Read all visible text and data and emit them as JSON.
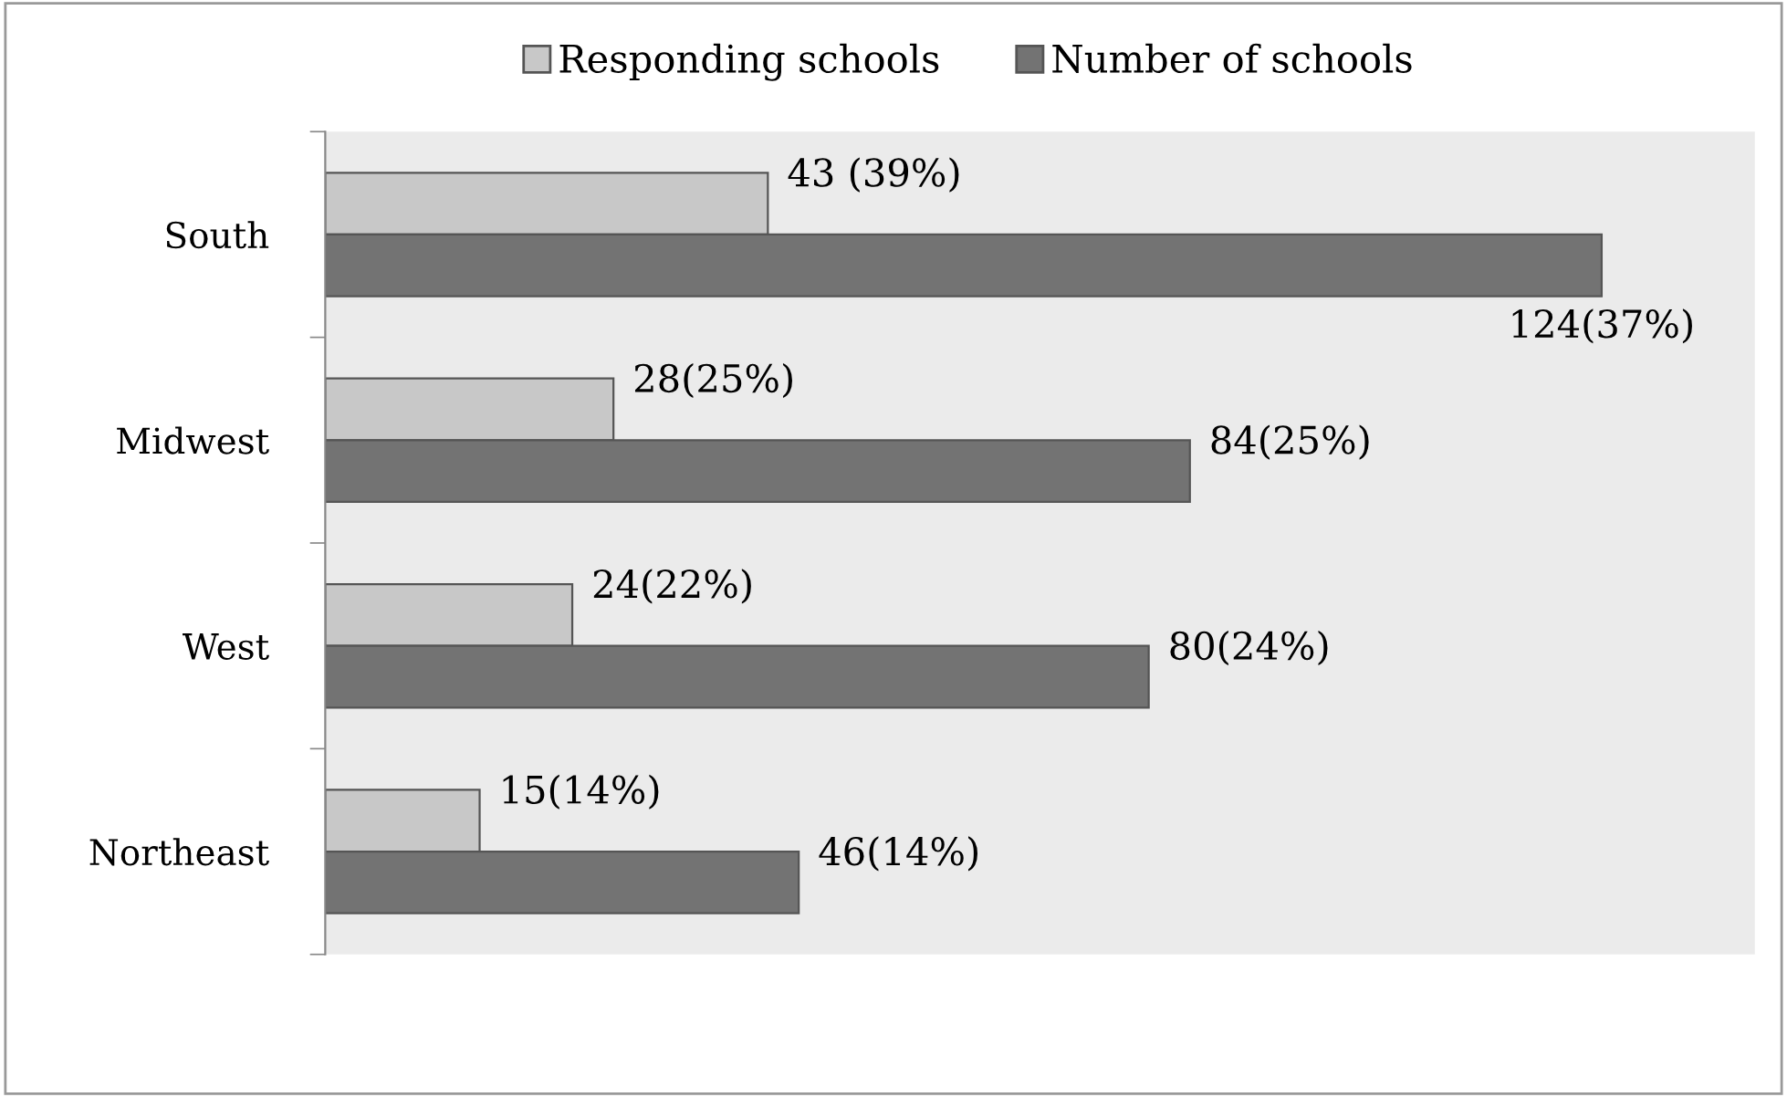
{
  "chart_data": {
    "type": "bar",
    "orientation": "horizontal",
    "categories": [
      "South",
      "Midwest",
      "West",
      "Northeast"
    ],
    "series": [
      {
        "name": "Responding schools",
        "color": "#c8c8c8",
        "values": [
          43,
          28,
          24,
          15
        ],
        "value_labels": [
          "43 (39%)",
          "28(25%)",
          "24(22%)",
          "15(14%)"
        ]
      },
      {
        "name": "Number of schools",
        "color": "#737373",
        "values": [
          124,
          84,
          80,
          46
        ],
        "value_labels": [
          "124(37%)",
          "84(25%)",
          "80(24%)",
          "46(14%)"
        ]
      }
    ],
    "legend": "top",
    "grid": false,
    "tick_labels": "y"
  }
}
